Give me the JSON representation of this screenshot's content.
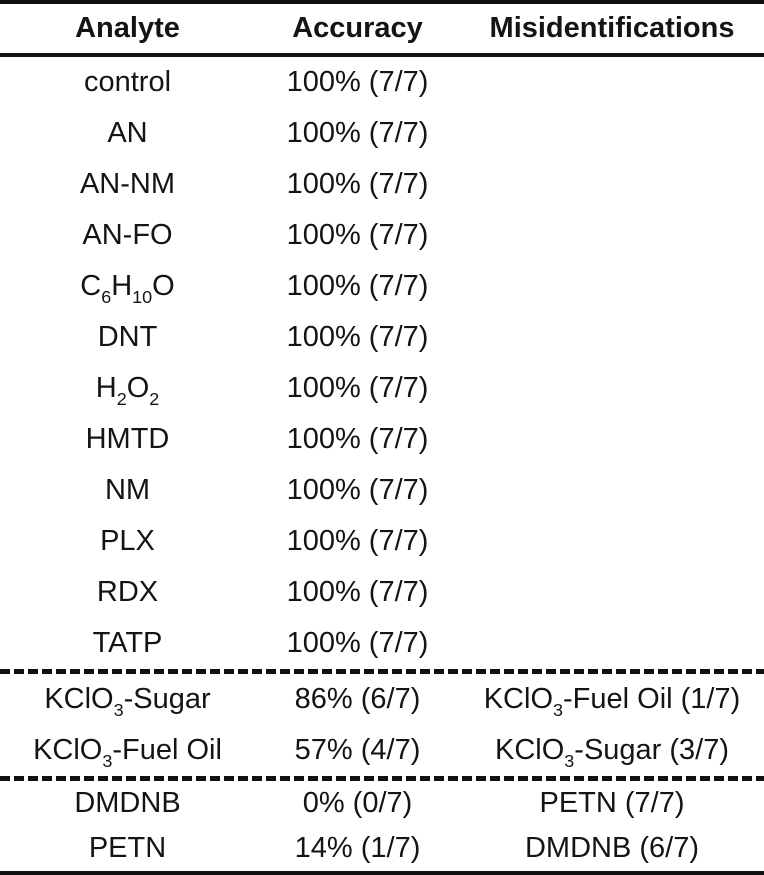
{
  "colors": {
    "background": "#ffffff",
    "text": "#141414",
    "rule": "#111111"
  },
  "table": {
    "headers": [
      {
        "label": "Analyte"
      },
      {
        "label": "Accuracy"
      },
      {
        "label": "Misidentifications"
      }
    ],
    "sections": [
      {
        "rows": [
          {
            "analyte": [
              [
                "control",
                0
              ]
            ],
            "accuracy": "100% (7/7)",
            "misid": []
          },
          {
            "analyte": [
              [
                "AN",
                0
              ]
            ],
            "accuracy": "100% (7/7)",
            "misid": []
          },
          {
            "analyte": [
              [
                "AN-NM",
                0
              ]
            ],
            "accuracy": "100% (7/7)",
            "misid": []
          },
          {
            "analyte": [
              [
                "AN-FO",
                0
              ]
            ],
            "accuracy": "100% (7/7)",
            "misid": []
          },
          {
            "analyte": [
              [
                "C",
                0
              ],
              [
                "6",
                1
              ],
              [
                "H",
                0
              ],
              [
                "10",
                1
              ],
              [
                "O",
                0
              ]
            ],
            "accuracy": "100% (7/7)",
            "misid": []
          },
          {
            "analyte": [
              [
                "DNT",
                0
              ]
            ],
            "accuracy": "100% (7/7)",
            "misid": []
          },
          {
            "analyte": [
              [
                "H",
                0
              ],
              [
                "2",
                1
              ],
              [
                "O",
                0
              ],
              [
                "2",
                1
              ]
            ],
            "accuracy": "100% (7/7)",
            "misid": []
          },
          {
            "analyte": [
              [
                "HMTD",
                0
              ]
            ],
            "accuracy": "100% (7/7)",
            "misid": []
          },
          {
            "analyte": [
              [
                "NM",
                0
              ]
            ],
            "accuracy": "100% (7/7)",
            "misid": []
          },
          {
            "analyte": [
              [
                "PLX",
                0
              ]
            ],
            "accuracy": "100% (7/7)",
            "misid": []
          },
          {
            "analyte": [
              [
                "RDX",
                0
              ]
            ],
            "accuracy": "100% (7/7)",
            "misid": []
          },
          {
            "analyte": [
              [
                "TATP",
                0
              ]
            ],
            "accuracy": "100% (7/7)",
            "misid": []
          }
        ]
      },
      {
        "rows": [
          {
            "analyte": [
              [
                "KClO",
                0
              ],
              [
                "3",
                1
              ],
              [
                "-Sugar",
                0
              ]
            ],
            "accuracy": "86% (6/7)",
            "misid": [
              [
                "KClO",
                0
              ],
              [
                "3",
                1
              ],
              [
                "-Fuel Oil (1/7)",
                0
              ]
            ]
          },
          {
            "analyte": [
              [
                "KClO",
                0
              ],
              [
                "3",
                1
              ],
              [
                "-Fuel Oil",
                0
              ]
            ],
            "accuracy": "57% (4/7)",
            "misid": [
              [
                "KClO",
                0
              ],
              [
                "3",
                1
              ],
              [
                "-Sugar (3/7)",
                0
              ]
            ]
          }
        ]
      },
      {
        "rows": [
          {
            "analyte": [
              [
                "DMDNB",
                0
              ]
            ],
            "accuracy": "0% (0/7)",
            "misid": [
              [
                "PETN (7/7)",
                0
              ]
            ]
          },
          {
            "analyte": [
              [
                "PETN",
                0
              ]
            ],
            "accuracy": "14% (1/7)",
            "misid": [
              [
                "DMDNB (6/7)",
                0
              ]
            ]
          }
        ]
      }
    ]
  }
}
